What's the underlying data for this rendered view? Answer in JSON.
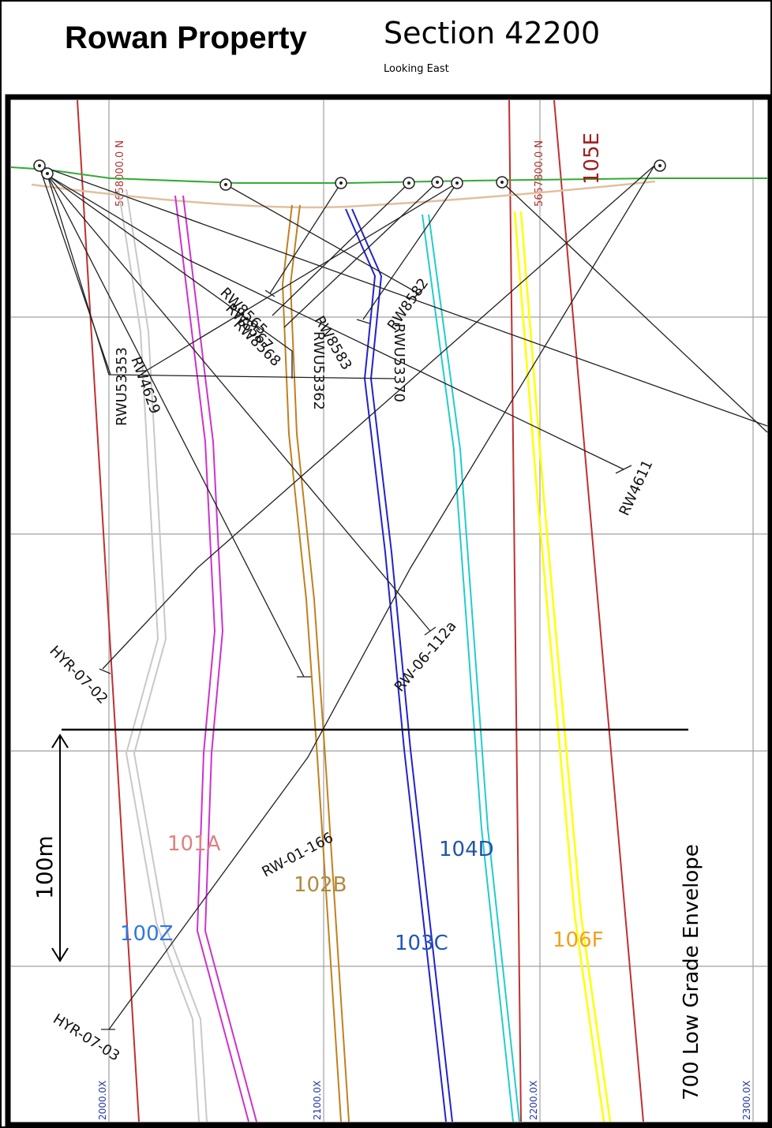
{
  "header": {
    "title": "Rowan Property",
    "section": "Section 42200",
    "looking": "Looking East"
  },
  "northings": [
    "5658000.0 N",
    "5657800.0 N"
  ],
  "eastings": [
    "2000.0X",
    "2100.0X",
    "2200.0X",
    "2300.0X"
  ],
  "zones": {
    "z100": "100Z",
    "z101": "101A",
    "z102": "102B",
    "z103": "103C",
    "z104": "104D",
    "z105": "105E",
    "z106": "106F"
  },
  "holes": {
    "rw8565": "RW8565",
    "rw8583": "RW8583",
    "rw8582": "RW8582",
    "rwu53362": "RWU53362",
    "rwu53370": "RWU53370",
    "rwu53353": "RWU53353",
    "rw4629": "RW4629",
    "rw4611": "RW4611",
    "rw06112a": "RW-06-112a",
    "rw01166": "RW-01-166",
    "hyr0702": "HYR-07-02",
    "hyr0703": "HYR-07-03",
    "overlap1": "RW8567",
    "overlap2": "RW8568",
    "overlap3": "RW8566"
  },
  "scale_label": "100m",
  "envelope_label": "700  Low Grade Envelope",
  "colors": {
    "z100": "#c8c8c8",
    "z101": "#cc33cc",
    "z102": "#c08020",
    "z103": "#2222cc",
    "z104": "#22cccc",
    "z105": "#c03030",
    "z106": "#ffff00",
    "topo": "#33aa33"
  }
}
